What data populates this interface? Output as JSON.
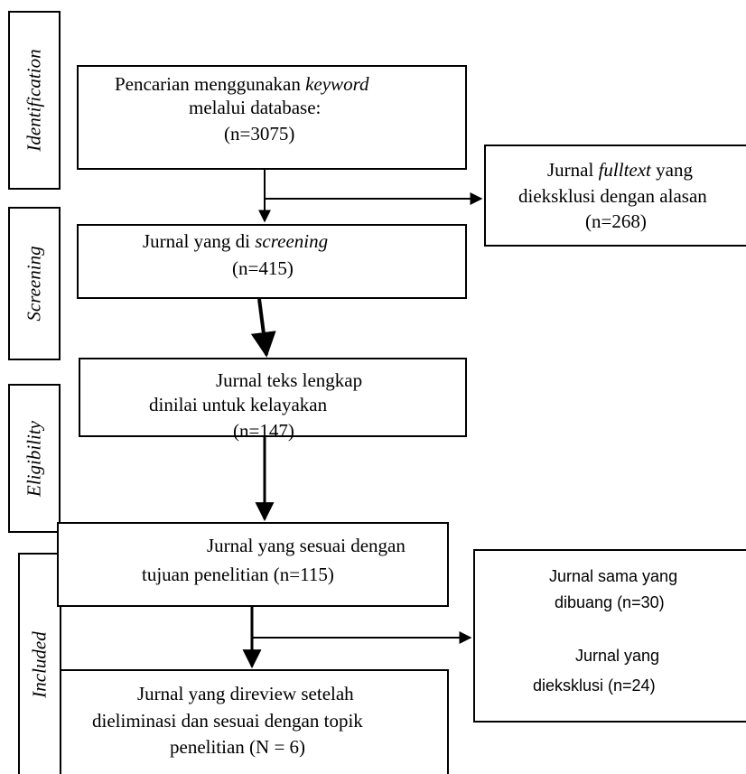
{
  "stages": {
    "identification": "Identification",
    "screening": "Screening",
    "eligibility": "Eligibility",
    "included": "Included"
  },
  "boxes": {
    "search": {
      "line1_prefix": "Pencarian menggunakan ",
      "line1_em": "keyword",
      "line2": "melalui database:",
      "line3": "(n=3075)"
    },
    "excluded_fulltext": {
      "line1_prefix": "Jurnal ",
      "line1_em": "fulltext",
      "line1_suffix": " yang",
      "line2": "dieksklusi dengan alasan",
      "line3": "(n=268)"
    },
    "screened": {
      "line1_prefix": "Jurnal yang di ",
      "line1_em": "screening",
      "line2": "(n=415)"
    },
    "fulltext_assessed": {
      "line1": "Jurnal teks lengkap",
      "line2": "dinilai untuk kelayakan",
      "line3": "(n=147)"
    },
    "relevant": {
      "line1": "Jurnal yang sesuai dengan",
      "line2": "tujuan penelitian  (n=115)"
    },
    "removed": {
      "line1": "Jurnal sama yang",
      "line2": "dibuang (n=30)",
      "line3": "Jurnal yang",
      "line4": "dieksklusi (n=24)"
    },
    "reviewed": {
      "line1": "Jurnal yang direview setelah",
      "line2": "dieliminasi dan sesuai dengan topik",
      "line3": "penelitian (N = 6)"
    }
  }
}
